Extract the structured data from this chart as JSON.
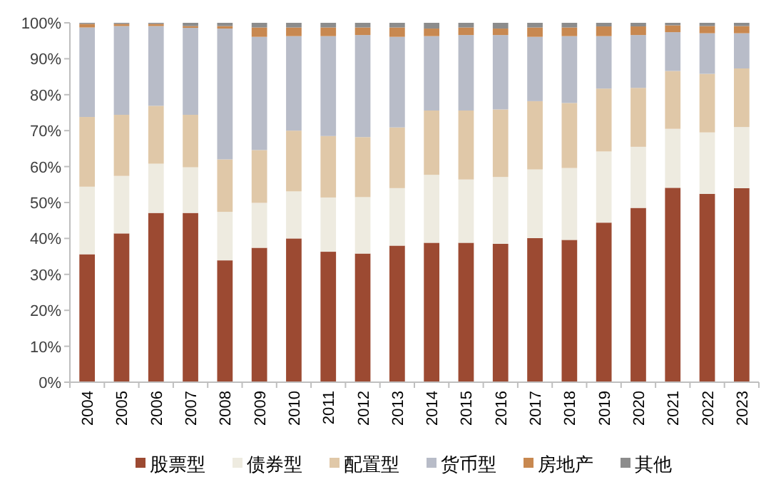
{
  "chart_data": {
    "type": "bar",
    "stacked": true,
    "categories": [
      "2004",
      "2005",
      "2006",
      "2007",
      "2008",
      "2009",
      "2010",
      "2011",
      "2012",
      "2013",
      "2014",
      "2015",
      "2016",
      "2017",
      "2018",
      "2019",
      "2020",
      "2021",
      "2022",
      "2023"
    ],
    "series": [
      {
        "name": "股票型",
        "color": "#9c4a32",
        "values": [
          35.6,
          41.4,
          47.1,
          47.1,
          33.9,
          37.4,
          40.0,
          36.3,
          35.8,
          38.0,
          38.8,
          38.8,
          38.5,
          40.1,
          39.6,
          44.4,
          48.5,
          54.1,
          52.4,
          54.0
        ]
      },
      {
        "name": "债券型",
        "color": "#eeebe0",
        "values": [
          18.8,
          16.0,
          13.7,
          12.7,
          13.5,
          12.5,
          13.1,
          15.1,
          15.7,
          16.0,
          18.9,
          17.6,
          18.6,
          19.1,
          20.0,
          19.8,
          17.0,
          16.4,
          17.1,
          17.0
        ]
      },
      {
        "name": "配置型",
        "color": "#e0c8a8",
        "values": [
          19.4,
          17.0,
          16.1,
          14.6,
          14.6,
          14.7,
          16.9,
          17.1,
          16.7,
          16.9,
          17.9,
          19.2,
          18.8,
          19.0,
          18.1,
          17.5,
          16.4,
          16.1,
          16.3,
          16.3
        ]
      },
      {
        "name": "货币型",
        "color": "#b8bcc8",
        "values": [
          24.9,
          24.7,
          22.2,
          24.2,
          36.4,
          31.5,
          26.3,
          27.8,
          28.4,
          25.2,
          20.7,
          21.0,
          20.7,
          17.9,
          18.6,
          14.6,
          14.7,
          10.8,
          11.3,
          9.8
        ]
      },
      {
        "name": "房地产",
        "color": "#c88850",
        "values": [
          1.0,
          0.6,
          0.6,
          0.5,
          0.7,
          2.6,
          2.4,
          2.4,
          2.1,
          2.6,
          2.1,
          2.1,
          1.8,
          2.6,
          2.4,
          2.7,
          2.4,
          1.9,
          2.0,
          2.0
        ]
      },
      {
        "name": "其他",
        "color": "#8c8c8c",
        "values": [
          0.3,
          0.3,
          0.3,
          0.9,
          0.9,
          1.3,
          1.3,
          1.3,
          1.3,
          1.3,
          1.6,
          1.3,
          1.6,
          1.3,
          1.3,
          1.0,
          1.0,
          0.7,
          0.9,
          0.9
        ]
      }
    ],
    "ylim": [
      0,
      100
    ],
    "yticks": [
      {
        "value": 0,
        "label": "0%"
      },
      {
        "value": 10,
        "label": "10%"
      },
      {
        "value": 20,
        "label": "20%"
      },
      {
        "value": 30,
        "label": "30%"
      },
      {
        "value": 40,
        "label": "40%"
      },
      {
        "value": 50,
        "label": "50%"
      },
      {
        "value": 60,
        "label": "60%"
      },
      {
        "value": 70,
        "label": "70%"
      },
      {
        "value": 80,
        "label": "80%"
      },
      {
        "value": 90,
        "label": "90%"
      },
      {
        "value": 100,
        "label": "100%"
      }
    ],
    "legend": "bottom"
  }
}
